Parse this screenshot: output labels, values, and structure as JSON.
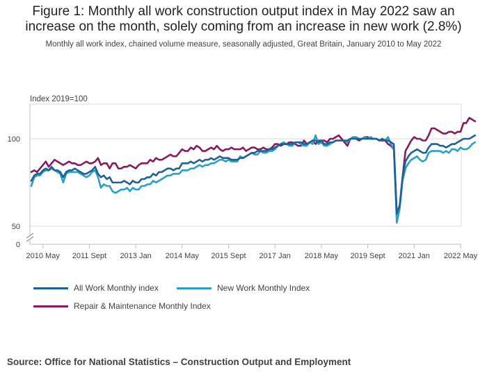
{
  "title_line1": "Figure 1: Monthly all work construction output index in May 2022 saw an",
  "title_line2": "increase on the month, solely coming from an increase in new work (2.8%)",
  "subtitle": "Monthly all work index, chained volume measure, seasonally adjusted, Great Britain, January 2010 to May 2022",
  "source": "Source: Office for National Statistics – Construction Output and Employment",
  "chart_data": {
    "type": "line",
    "ylabel": "Index 2019=100",
    "y_ticks": [
      0,
      50,
      100
    ],
    "y_broken_axis": true,
    "ylim_upper": [
      50,
      120
    ],
    "x_ticks": [
      "2010 May",
      "2011 Sept",
      "2013 Jan",
      "2014 May",
      "2015 Sept",
      "2017 Jan",
      "2018 May",
      "2019 Sept",
      "2021 Jan",
      "2022 May"
    ],
    "x_tick_months": [
      4,
      20,
      36,
      52,
      68,
      84,
      100,
      116,
      132,
      148
    ],
    "x_start": "January 2010",
    "colors": {
      "all_work": "#206095",
      "new_work": "#27a0cc",
      "repair": "#871a5b"
    },
    "legend_position": "bottom",
    "series": [
      {
        "name": "All Work Monthly index",
        "key": "all_work",
        "values": [
          76,
          79,
          80,
          80,
          82,
          83,
          82,
          84,
          82,
          82,
          81,
          78,
          81,
          82,
          82,
          83,
          82,
          81,
          80,
          80,
          81,
          82,
          84,
          80,
          78,
          79,
          77,
          78,
          75,
          75,
          75,
          75,
          76,
          75,
          74,
          76,
          75,
          75,
          77,
          77,
          78,
          78,
          80,
          79,
          81,
          81,
          82,
          83,
          83,
          82,
          83,
          83,
          86,
          86,
          86,
          87,
          86,
          87,
          88,
          87,
          88,
          88,
          89,
          88,
          89,
          90,
          89,
          89,
          89,
          88,
          88,
          88,
          89,
          89,
          90,
          91,
          92,
          92,
          93,
          93,
          93,
          93,
          94,
          94,
          95,
          96,
          97,
          97,
          97,
          97,
          97,
          98,
          98,
          98,
          97,
          97,
          98,
          99,
          99,
          98,
          99,
          97,
          97,
          98,
          98,
          99,
          99,
          99,
          99,
          99,
          100,
          100,
          100,
          100,
          100,
          100,
          100,
          100,
          100,
          100,
          99,
          100,
          99,
          99,
          98,
          97,
          57,
          62,
          78,
          87,
          90,
          92,
          93,
          94,
          93,
          92,
          92,
          95,
          97,
          97,
          97,
          96,
          96,
          95,
          96,
          97,
          97,
          98,
          99,
          100,
          100,
          100,
          101,
          102
        ]
      },
      {
        "name": "New Work Monthly Index",
        "key": "new_work",
        "values": [
          73,
          78,
          79,
          79,
          81,
          82,
          82,
          83,
          82,
          81,
          80,
          75,
          80,
          81,
          81,
          81,
          81,
          80,
          79,
          78,
          79,
          81,
          82,
          78,
          72,
          74,
          73,
          73,
          70,
          69,
          70,
          71,
          71,
          72,
          70,
          72,
          71,
          71,
          73,
          73,
          74,
          74,
          76,
          75,
          76,
          77,
          78,
          79,
          79,
          80,
          80,
          80,
          82,
          82,
          82,
          83,
          83,
          84,
          85,
          84,
          85,
          85,
          86,
          86,
          87,
          88,
          88,
          87,
          88,
          87,
          87,
          87,
          90,
          89,
          90,
          91,
          92,
          91,
          91,
          93,
          92,
          92,
          93,
          93,
          94,
          96,
          97,
          98,
          97,
          96,
          96,
          98,
          98,
          97,
          96,
          96,
          98,
          97,
          102,
          97,
          98,
          96,
          96,
          97,
          98,
          99,
          99,
          99,
          99,
          98,
          100,
          101,
          101,
          100,
          100,
          101,
          100,
          101,
          100,
          100,
          99,
          100,
          99,
          101,
          97,
          94,
          52,
          60,
          76,
          83,
          86,
          88,
          89,
          90,
          88,
          87,
          88,
          92,
          93,
          93,
          93,
          93,
          92,
          93,
          92,
          94,
          94,
          93,
          95,
          94,
          94,
          95,
          97,
          98
        ]
      },
      {
        "name": "Repair & Maintenance Monthly Index",
        "key": "repair",
        "values": [
          81,
          82,
          81,
          83,
          85,
          87,
          84,
          86,
          88,
          87,
          86,
          85,
          86,
          87,
          86,
          86,
          85,
          85,
          86,
          87,
          86,
          86,
          87,
          89,
          85,
          86,
          86,
          83,
          86,
          86,
          83,
          83,
          84,
          84,
          85,
          84,
          83,
          85,
          86,
          86,
          86,
          88,
          87,
          89,
          88,
          88,
          89,
          90,
          91,
          90,
          90,
          92,
          94,
          93,
          93,
          95,
          94,
          96,
          95,
          93,
          93,
          94,
          95,
          94,
          96,
          94,
          93,
          94,
          94,
          95,
          94,
          94,
          94,
          95,
          93,
          94,
          95,
          95,
          94,
          94,
          95,
          94,
          94,
          95,
          97,
          97,
          96,
          97,
          97,
          98,
          98,
          97,
          96,
          96,
          99,
          97,
          98,
          99,
          97,
          99,
          99,
          99,
          98,
          100,
          100,
          101,
          102,
          100,
          98,
          96,
          100,
          101,
          100,
          99,
          100,
          101,
          101,
          100,
          100,
          100,
          99,
          99,
          99,
          97,
          96,
          94,
          58,
          61,
          78,
          93,
          96,
          99,
          101,
          100,
          100,
          99,
          99,
          102,
          106,
          106,
          105,
          104,
          103,
          103,
          104,
          104,
          103,
          104,
          104,
          109,
          109,
          112,
          111,
          110
        ]
      }
    ]
  }
}
